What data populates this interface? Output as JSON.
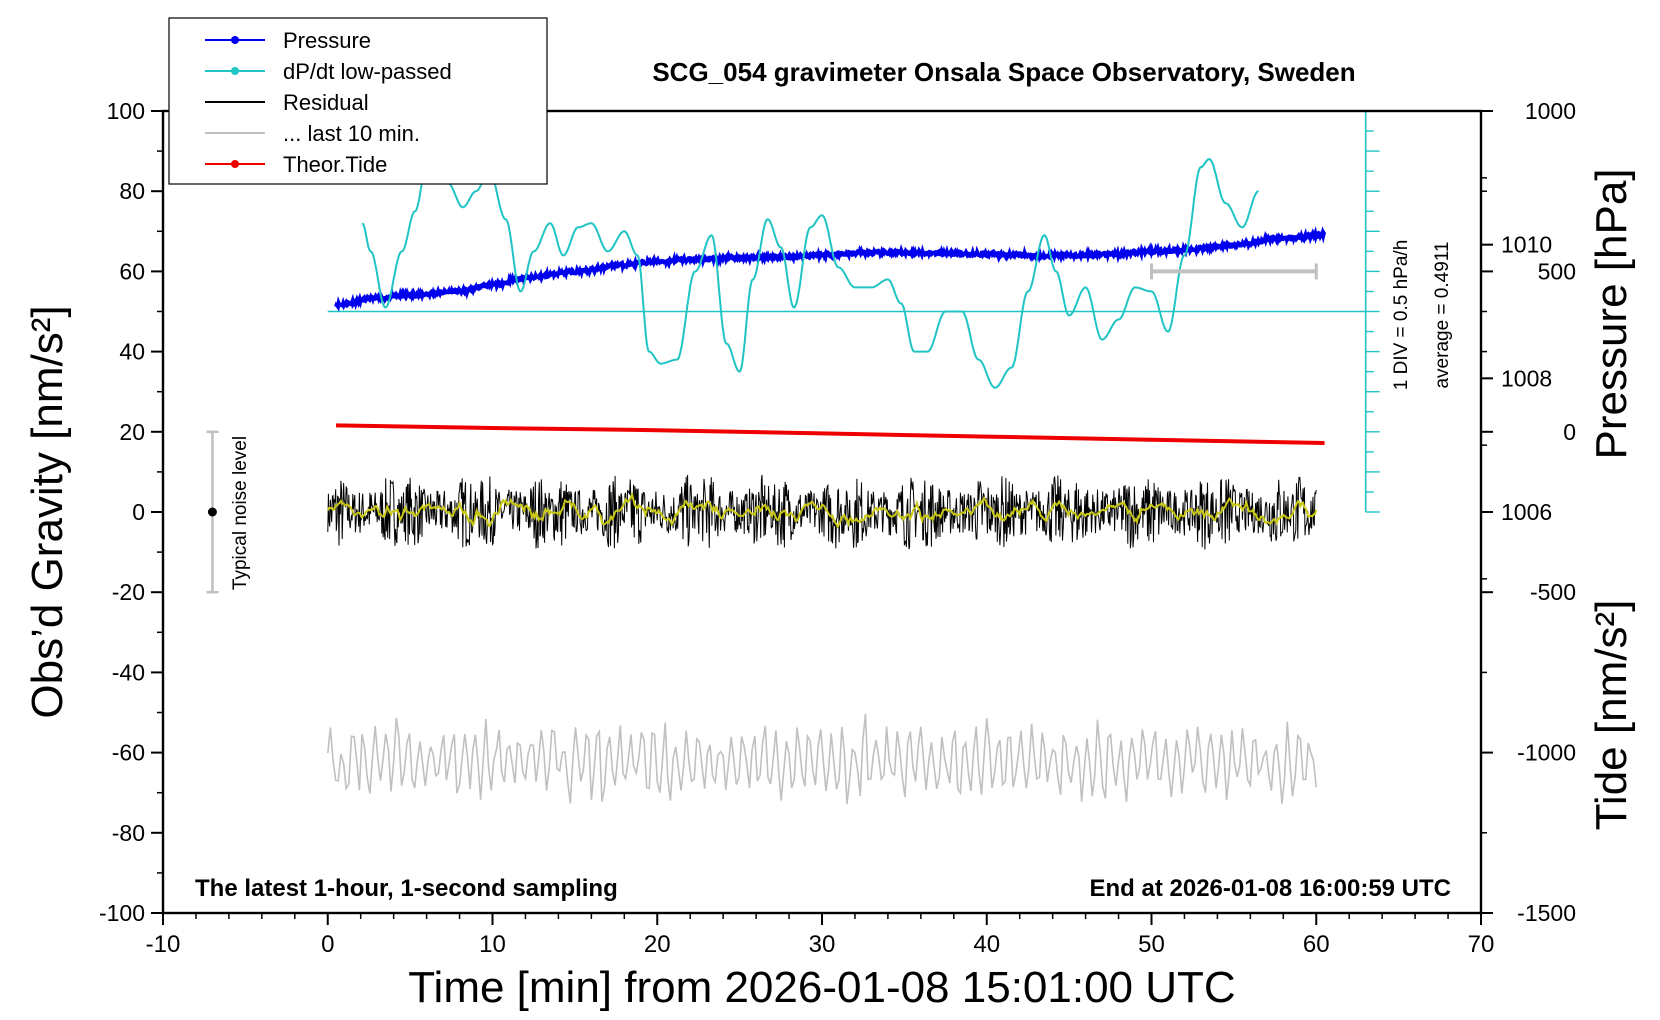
{
  "chart_data": {
    "type": "line",
    "title": "SCG_054 gravimeter Onsala Space Observatory, Sweden",
    "xlabel": "Time [min] from 2026-01-08 15:01:00 UTC",
    "ylabel": "Obs’d Gravity [nm/s²]",
    "ylabel_pressure": "Pressure [hPa]",
    "ylabel_tide": "Tide [nm/s²]",
    "xlim": [
      -10,
      70
    ],
    "ylim": [
      -100,
      100
    ],
    "pressure_lim": [
      1000,
      1012
    ],
    "tide_lim": [
      -1500,
      1000
    ],
    "x_ticks": [
      "-10",
      "0",
      "10",
      "20",
      "30",
      "40",
      "50",
      "60",
      "70"
    ],
    "y_ticks": [
      "100",
      "80",
      "60",
      "40",
      "20",
      "0",
      "-20",
      "-40",
      "-60",
      "-80",
      "-100"
    ],
    "pressure_ticks": [
      "1010",
      "1008",
      "1006"
    ],
    "tide_ticks": [
      "1000",
      "500",
      "0",
      "-500",
      "-1000",
      "-1500"
    ],
    "legend": [
      {
        "label": "Pressure",
        "color": "#0000ee",
        "marker": true
      },
      {
        "label": "dP/dt low-passed",
        "color": "#20c4c4",
        "marker": true
      },
      {
        "label": "Residual",
        "color": "#000000",
        "marker": false
      },
      {
        "label": "... last 10 min.",
        "color": "#c0c0c0",
        "marker": false
      },
      {
        "label": "Theor.Tide",
        "color": "#ee0000",
        "marker": true
      }
    ],
    "annotations": {
      "bottom_left": "The latest 1-hour, 1-second sampling",
      "bottom_right": "End at 2026-01-08 16:00:59 UTC",
      "noise_label": "Typical noise level",
      "dpdt_scale": "1 DIV = 0.5 hPa/h",
      "dpdt_average": "average = 0.4911"
    },
    "series": [
      {
        "name": "Pressure",
        "axis": "pressure",
        "x": [
          0.5,
          3,
          5,
          8,
          10,
          12,
          15,
          18,
          20,
          22,
          25,
          28,
          30,
          33,
          36,
          40,
          43,
          45,
          48,
          50,
          52,
          55,
          58,
          60.5
        ],
        "values": [
          1009.1,
          1009.2,
          1009.25,
          1009.3,
          1009.4,
          1009.5,
          1009.6,
          1009.7,
          1009.75,
          1009.78,
          1009.8,
          1009.82,
          1009.85,
          1009.88,
          1009.88,
          1009.86,
          1009.84,
          1009.84,
          1009.86,
          1009.9,
          1009.92,
          1010.0,
          1010.1,
          1010.15
        ]
      },
      {
        "name": "dP/dt low-passed",
        "axis": "gravity",
        "x": [
          2.1,
          2.6,
          3.5,
          4.5,
          5.3,
          6,
          6.5,
          7.3,
          8.2,
          9,
          9.8,
          10.8,
          11.7,
          12.5,
          13.5,
          14.3,
          15.2,
          16,
          17,
          18,
          18.8,
          19.5,
          20.2,
          21.2,
          22.3,
          23.3,
          24.2,
          25,
          25.8,
          26.7,
          27.5,
          28.3,
          29.3,
          30,
          31,
          32,
          33,
          34,
          34.8,
          35.6,
          36.4,
          37.5,
          38.5,
          39.5,
          40.5,
          41.5,
          42.5,
          43.5,
          44.2,
          45,
          46,
          47,
          48,
          49,
          50,
          51,
          52,
          53,
          53.5,
          54.5,
          55.5,
          56.5
        ],
        "values": [
          72,
          65,
          51,
          65,
          75,
          86,
          88,
          82,
          76,
          80,
          85,
          73,
          55,
          65,
          72,
          64,
          71,
          72,
          65,
          70,
          64,
          40,
          37,
          38,
          60,
          69,
          42,
          35,
          58,
          73,
          66,
          51,
          71,
          74,
          61,
          56,
          56,
          58,
          52,
          40,
          40,
          50,
          50,
          38,
          31,
          36,
          55,
          69,
          60,
          49,
          56,
          43,
          48,
          56,
          55,
          45,
          64,
          86,
          88,
          77,
          71,
          80
        ]
      },
      {
        "name": "Residual",
        "axis": "gravity",
        "x": [
          0,
          60
        ],
        "values": [
          0,
          0
        ]
      },
      {
        "name": "... last 10 min.",
        "axis": "gravity",
        "x": [
          0,
          60
        ],
        "values": [
          -62,
          -62
        ]
      },
      {
        "name": "Theor.Tide",
        "axis": "tide",
        "x": [
          0.5,
          10,
          20,
          30,
          40,
          50,
          60.5
        ],
        "values": [
          20,
          12,
          5,
          -5,
          -15,
          -25,
          -35
        ]
      }
    ],
    "noise_bar": {
      "x": -7,
      "center": 0,
      "low": -20,
      "high": 20
    },
    "window_bar": {
      "x_start": 50,
      "x_end": 60,
      "tide_value": 500
    },
    "dpdt_zero_line": 50,
    "grid": false,
    "legend_position": "top-left"
  }
}
